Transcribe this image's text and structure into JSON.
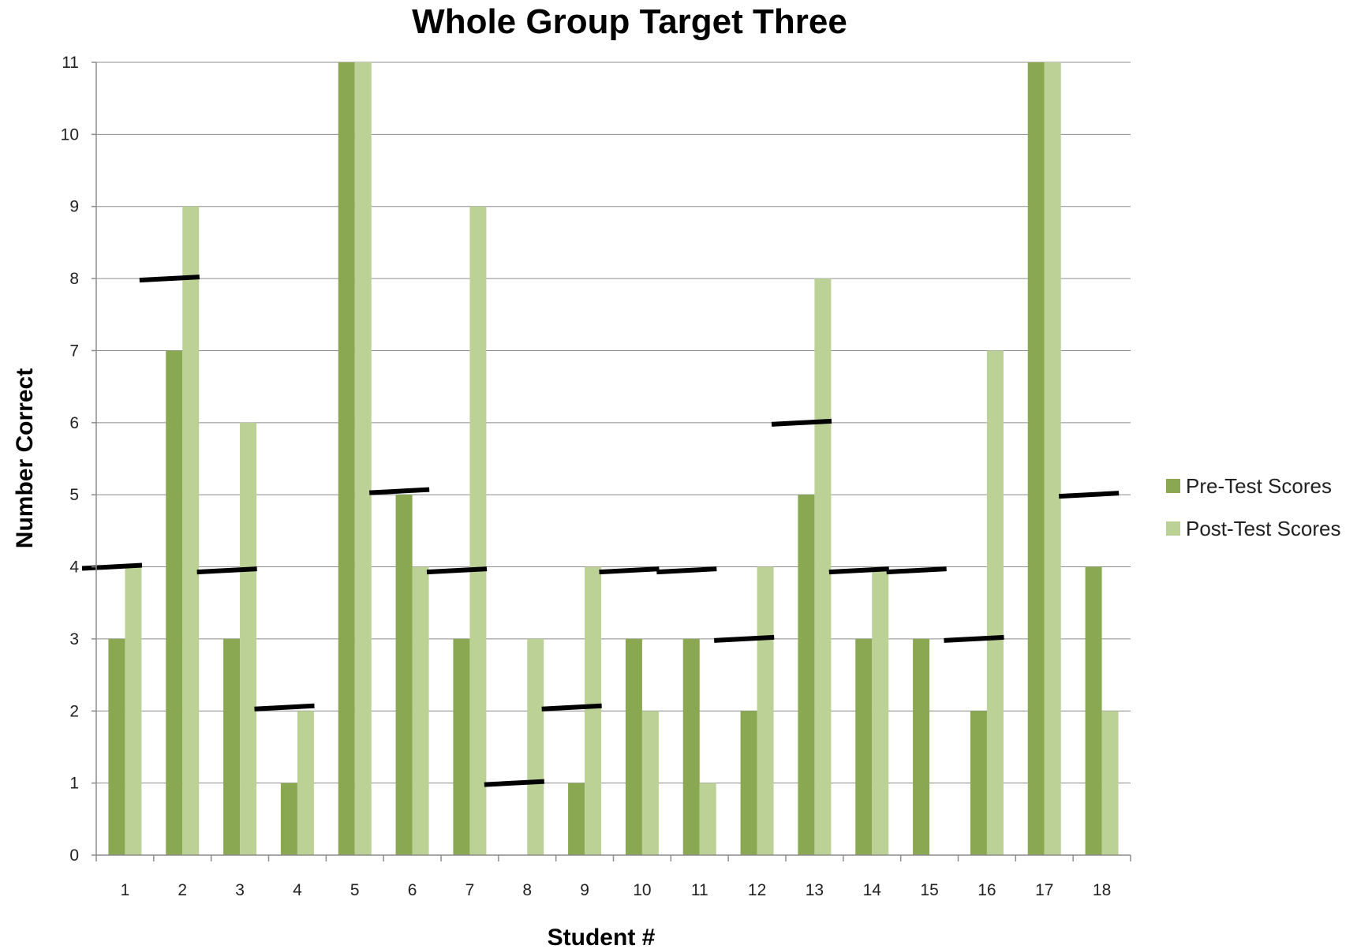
{
  "chart_data": {
    "type": "bar",
    "title": "Whole Group Target Three",
    "xlabel": "Student #",
    "ylabel": "Number Correct",
    "categories": [
      "1",
      "2",
      "3",
      "4",
      "5",
      "6",
      "7",
      "8",
      "9",
      "10",
      "11",
      "12",
      "13",
      "14",
      "15",
      "16",
      "17",
      "18"
    ],
    "series": [
      {
        "name": "Pre-Test Scores",
        "color": "#8aa752",
        "values": [
          3,
          7,
          3,
          1,
          11,
          5,
          3,
          0,
          1,
          3,
          3,
          2,
          5,
          3,
          3,
          2,
          11,
          4
        ]
      },
      {
        "name": "Post-Test Scores",
        "color": "#bcd196",
        "values": [
          4,
          9,
          6,
          2,
          11,
          4,
          9,
          3,
          4,
          2,
          1,
          4,
          8,
          4,
          0,
          7,
          11,
          2
        ]
      }
    ],
    "target_markers": {
      "color": "#000000",
      "values": [
        4,
        8,
        3.95,
        2.05,
        null,
        5.05,
        3.95,
        1,
        2.05,
        3.95,
        3.95,
        3,
        6,
        3.95,
        3.95,
        3,
        null,
        5
      ]
    },
    "ylim": [
      0,
      11
    ],
    "yticks": [
      0,
      1,
      2,
      3,
      4,
      5,
      6,
      7,
      8,
      9,
      10,
      11
    ],
    "grid": true,
    "legend_position": "right"
  }
}
